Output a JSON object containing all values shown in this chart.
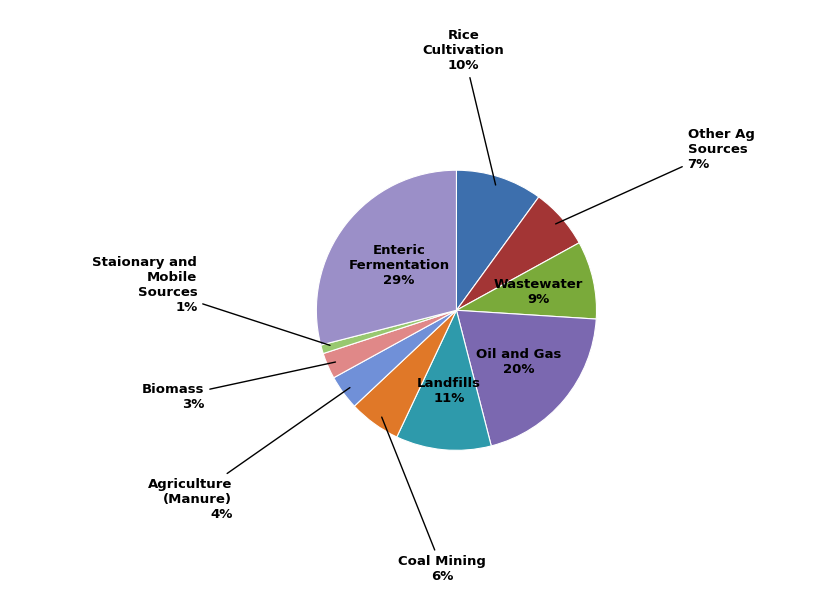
{
  "sizes": [
    10,
    7,
    9,
    20,
    11,
    6,
    4,
    3,
    1,
    29
  ],
  "colors": [
    "#3d6fad",
    "#a33535",
    "#7aaa3a",
    "#7b68b0",
    "#2e9aab",
    "#e07828",
    "#7090d8",
    "#e08888",
    "#98c870",
    "#9b8fc8"
  ],
  "startangle": 90,
  "label_configs": [
    {
      "idx": 0,
      "label": "Rice\nCultivation\n10%",
      "xt": 0.05,
      "yt": 1.7,
      "ha": "center",
      "va": "bottom",
      "r_arrow": 0.92
    },
    {
      "idx": 1,
      "label": "Other Ag\nSources\n7%",
      "xt": 1.65,
      "yt": 1.15,
      "ha": "left",
      "va": "center",
      "r_arrow": 0.92
    },
    {
      "idx": 2,
      "label": "Wastewater\n9%",
      "xt": 0.0,
      "yt": 0.0,
      "ha": "center",
      "va": "center",
      "r_arrow": 0.6,
      "interior": true
    },
    {
      "idx": 3,
      "label": "Oil and Gas\n20%",
      "xt": 0.0,
      "yt": 0.0,
      "ha": "center",
      "va": "center",
      "r_arrow": 0.58,
      "interior": true
    },
    {
      "idx": 4,
      "label": "Landfills\n11%",
      "xt": 0.0,
      "yt": 0.0,
      "ha": "center",
      "va": "center",
      "r_arrow": 0.58,
      "interior": true
    },
    {
      "idx": 5,
      "label": "Coal Mining\n6%",
      "xt": -0.1,
      "yt": -1.75,
      "ha": "center",
      "va": "top",
      "r_arrow": 0.92
    },
    {
      "idx": 6,
      "label": "Agriculture\n(Manure)\n4%",
      "xt": -1.6,
      "yt": -1.35,
      "ha": "right",
      "va": "center",
      "r_arrow": 0.92
    },
    {
      "idx": 7,
      "label": "Biomass\n3%",
      "xt": -1.8,
      "yt": -0.62,
      "ha": "right",
      "va": "center",
      "r_arrow": 0.92
    },
    {
      "idx": 8,
      "label": "Staionary and\nMobile\nSources\n1%",
      "xt": -1.85,
      "yt": 0.18,
      "ha": "right",
      "va": "center",
      "r_arrow": 0.92
    },
    {
      "idx": 9,
      "label": "Enteric\nFermentation\n29%",
      "xt": 0.0,
      "yt": 0.0,
      "ha": "center",
      "va": "center",
      "r_arrow": 0.52,
      "interior": true
    }
  ],
  "fontsize": 9.5,
  "background_color": "#ffffff"
}
